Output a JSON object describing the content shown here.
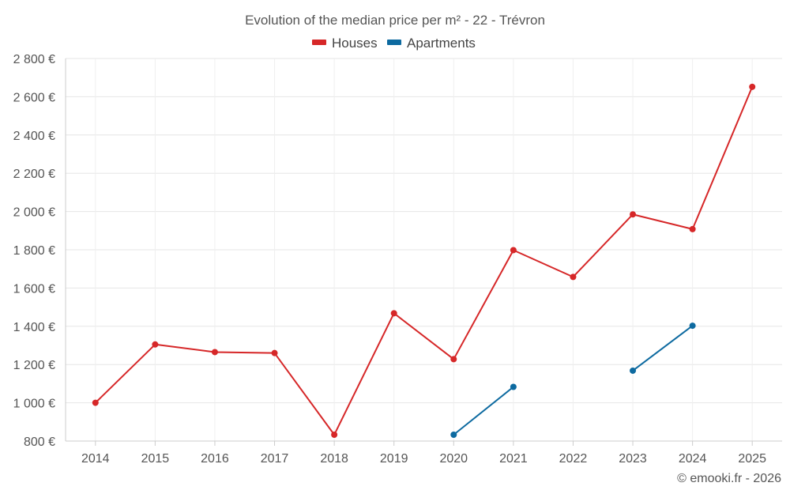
{
  "chart_data": {
    "type": "line",
    "title": "Evolution of the median price per m² - 22 - Trévron",
    "xlabel": "",
    "ylabel": "",
    "categories": [
      "2014",
      "2015",
      "2016",
      "2017",
      "2018",
      "2019",
      "2020",
      "2021",
      "2022",
      "2023",
      "2024",
      "2025"
    ],
    "ylim": [
      800,
      2800
    ],
    "y_ticks": [
      800,
      1000,
      1200,
      1400,
      1600,
      1800,
      2000,
      2200,
      2400,
      2600,
      2800
    ],
    "y_tick_labels": [
      "800 €",
      "1 000 €",
      "1 200 €",
      "1 400 €",
      "1 600 €",
      "1 800 €",
      "2 000 €",
      "2 200 €",
      "2 400 €",
      "2 600 €",
      "2 800 €"
    ],
    "grid": true,
    "legend_position": "top-center",
    "series": [
      {
        "name": "Houses",
        "color": "#d62728",
        "values": [
          1000,
          1305,
          1265,
          1260,
          833,
          1468,
          1228,
          1798,
          1658,
          1985,
          1908,
          2652
        ]
      },
      {
        "name": "Apartments",
        "color": "#0d6aa0",
        "values": [
          null,
          null,
          null,
          null,
          null,
          null,
          833,
          1083,
          null,
          1168,
          1403,
          null
        ]
      }
    ],
    "credit": "© emooki.fr - 2026"
  }
}
